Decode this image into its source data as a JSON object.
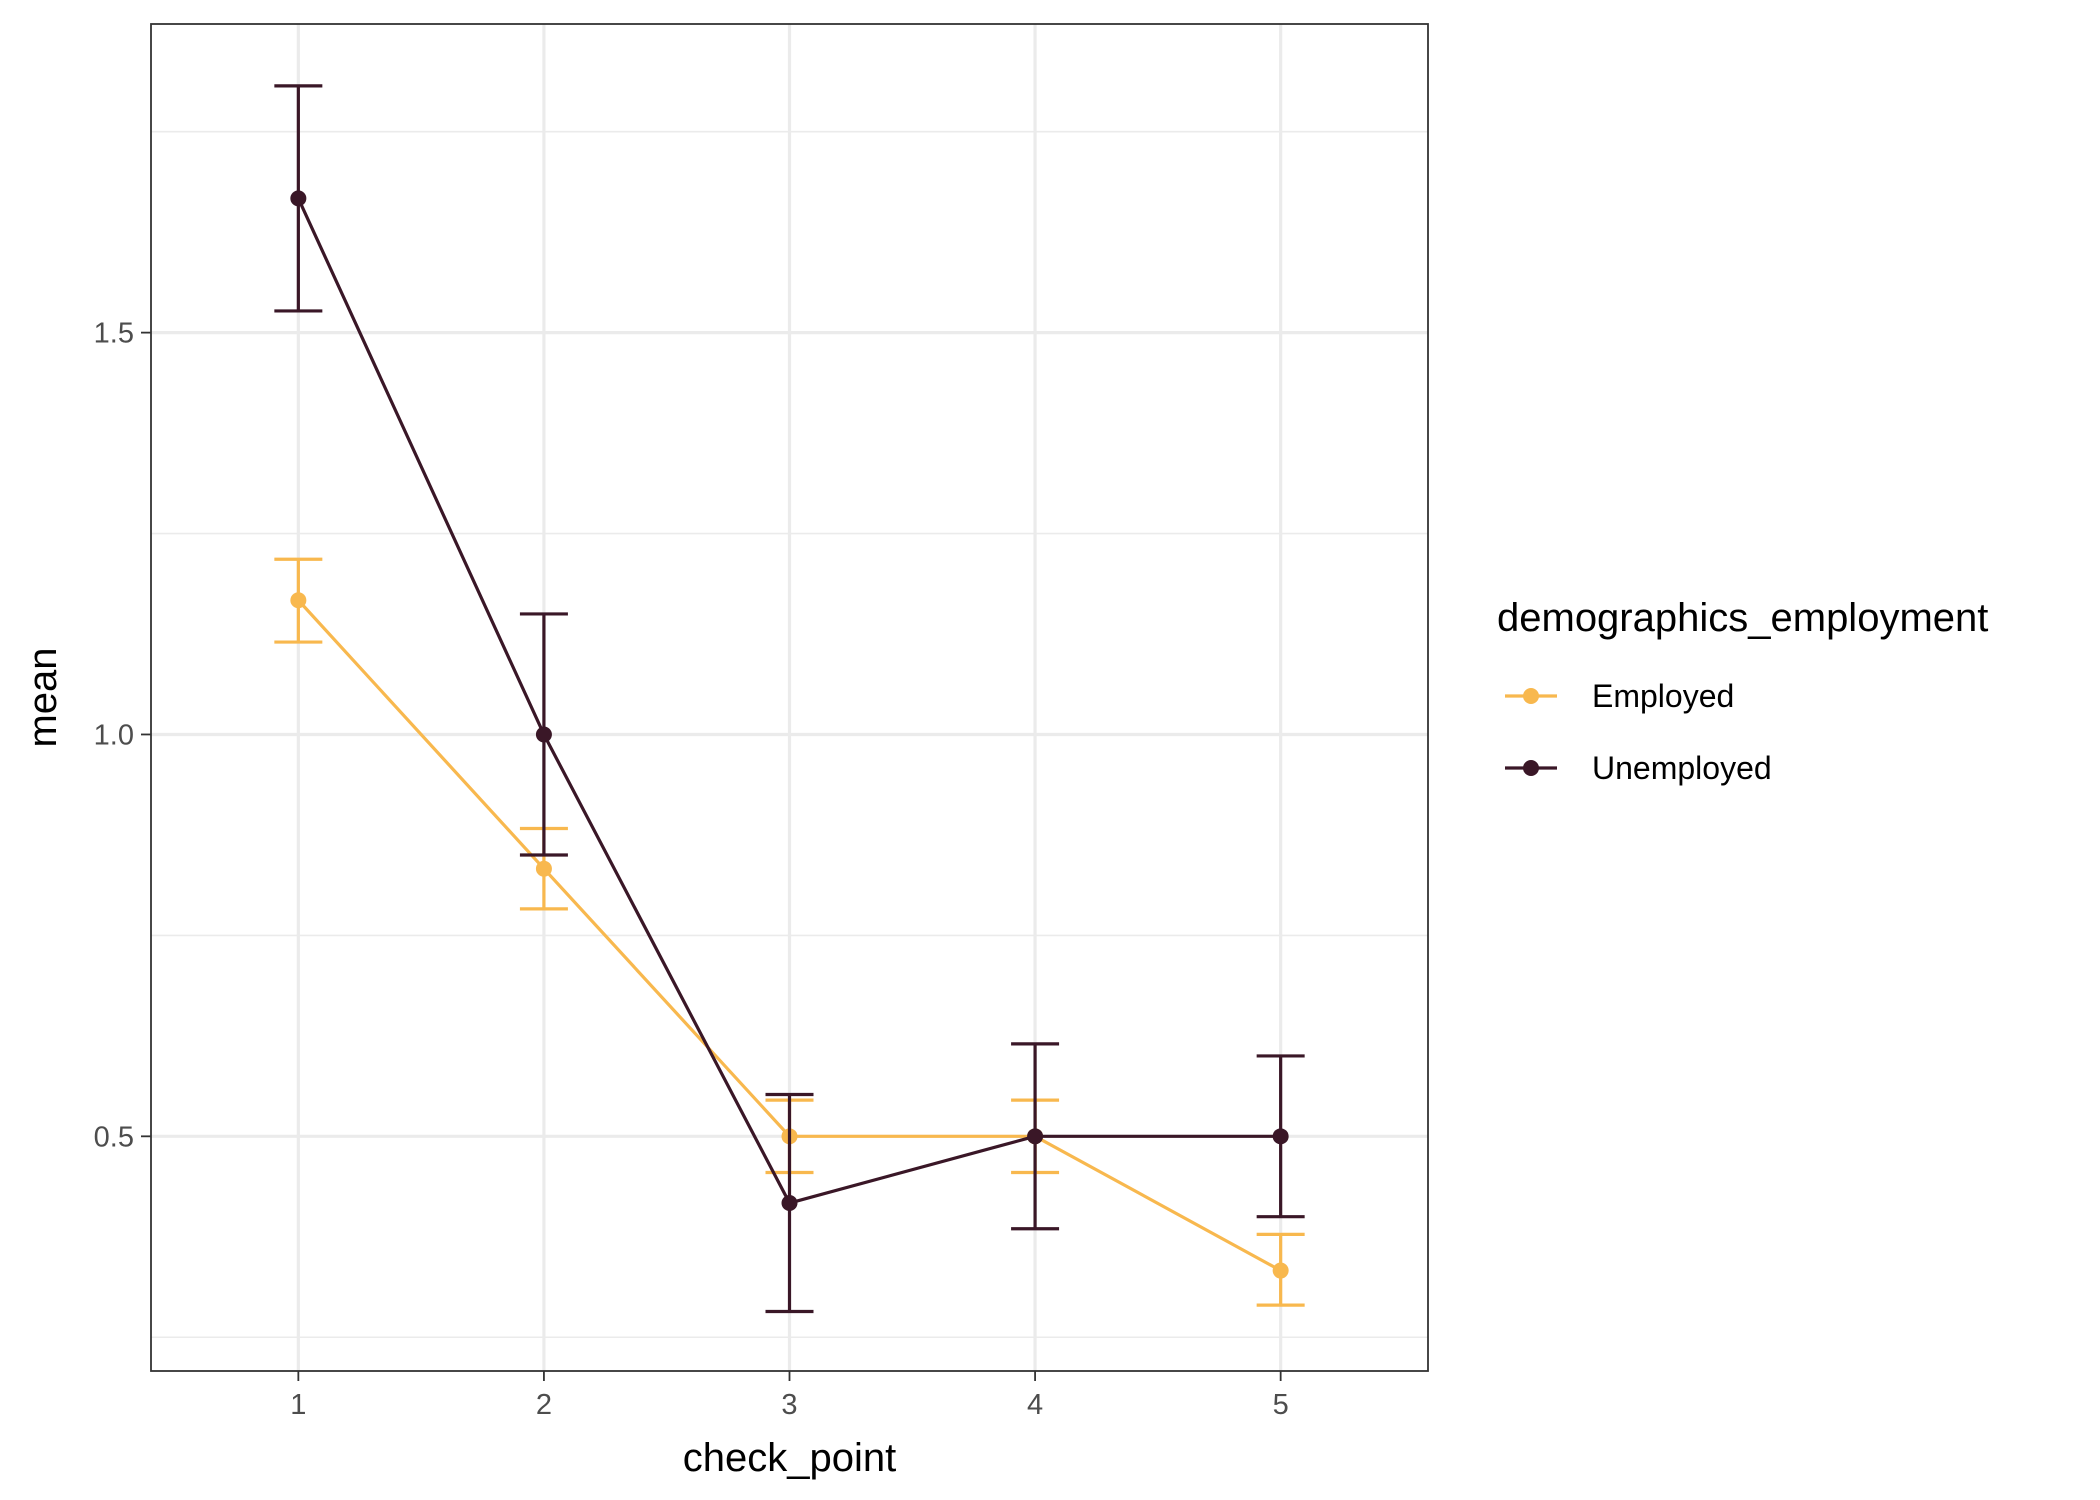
{
  "chart_data": {
    "type": "line",
    "xlabel": "check_point",
    "ylabel": "mean",
    "x": [
      1,
      2,
      3,
      4,
      5
    ],
    "x_tick_labels": [
      "1",
      "2",
      "3",
      "4",
      "5"
    ],
    "y_tick_labels": [
      "0.5",
      "1.0",
      "1.5"
    ],
    "y_ticks": [
      0.5,
      1.0,
      1.5
    ],
    "y_minor_ticks": [
      0.25,
      0.75,
      1.25,
      1.75
    ],
    "xlim": [
      0.4,
      5.6
    ],
    "ylim": [
      0.208,
      1.884
    ],
    "grid": true,
    "error_bars": true,
    "legend": {
      "title": "demographics_employment",
      "placement": "right"
    },
    "series": [
      {
        "name": "Employed",
        "color": "#F8B84E",
        "values": [
          1.167,
          0.833,
          0.5,
          0.5,
          0.333
        ],
        "lower": [
          1.115,
          0.783,
          0.455,
          0.455,
          0.29
        ],
        "upper": [
          1.218,
          0.883,
          0.545,
          0.545,
          0.378
        ]
      },
      {
        "name": "Unemployed",
        "color": "#3A1727",
        "values": [
          1.667,
          1.0,
          0.417,
          0.5,
          0.5
        ],
        "lower": [
          1.527,
          0.85,
          0.282,
          0.385,
          0.4
        ],
        "upper": [
          1.807,
          1.15,
          0.552,
          0.615,
          0.6
        ]
      }
    ]
  }
}
